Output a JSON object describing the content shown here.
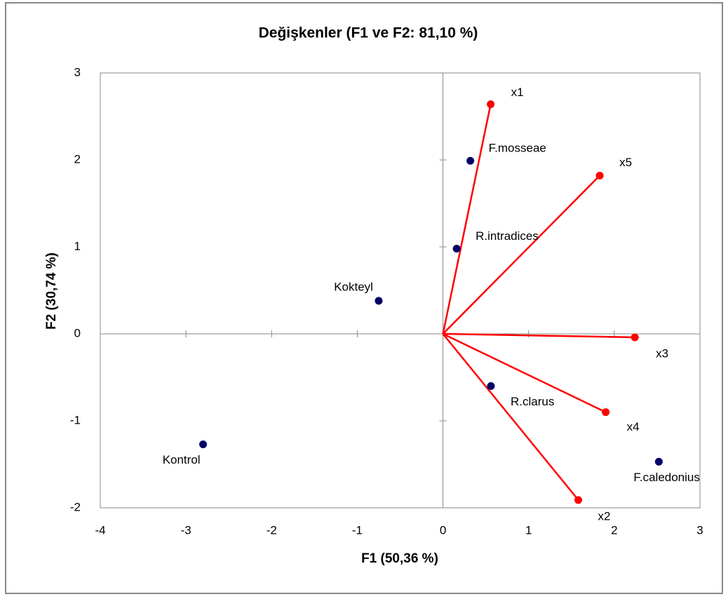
{
  "chart_data": {
    "type": "biplot",
    "title": "Değişkenler (F1 ve F2: 81,10 %)",
    "x_label": "F1 (50,36 %)",
    "y_label": "F2 (30,74 %)",
    "xlim": [
      -4,
      3
    ],
    "ylim": [
      -2,
      3
    ],
    "xticks": [
      -4,
      -3,
      -2,
      -1,
      0,
      1,
      2,
      3
    ],
    "yticks": [
      -2,
      -1,
      0,
      1,
      2,
      3
    ],
    "series": [
      {
        "color": "#ff0000",
        "vectors": true,
        "labels": [
          "x1",
          "x5",
          "x3",
          "x4",
          "x2"
        ],
        "x": [
          0.557,
          1.83,
          2.24,
          1.9,
          1.58
        ],
        "values": [
          2.64,
          1.82,
          -0.04,
          -0.9,
          -1.91
        ]
      },
      {
        "color": "#000066",
        "vectors": false,
        "labels": [
          "F.mosseae",
          "R.intradices",
          "Kokteyl",
          "R.clarus",
          "Kontrol",
          "F.caledonius"
        ],
        "x": [
          0.32,
          0.16,
          -0.75,
          0.56,
          -2.8,
          2.52
        ],
        "values": [
          1.99,
          0.98,
          0.38,
          -0.6,
          -1.27,
          -1.47
        ]
      }
    ]
  }
}
